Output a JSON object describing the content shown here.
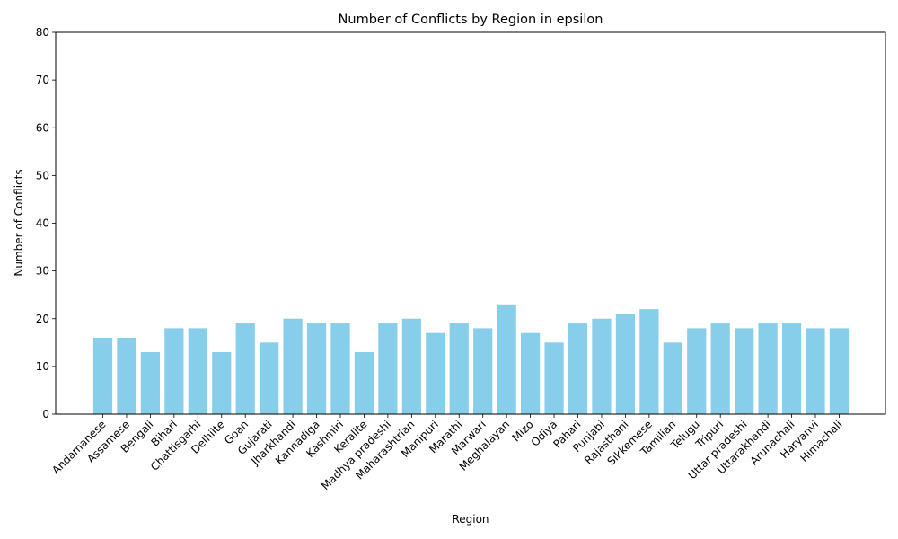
{
  "chart_data": {
    "type": "bar",
    "title": "Number of Conflicts by Region in epsilon",
    "xlabel": "Region",
    "ylabel": "Number of Conflicts",
    "ylim": [
      0,
      80
    ],
    "yticks": [
      0,
      10,
      20,
      30,
      40,
      50,
      60,
      70,
      80
    ],
    "grid": false,
    "bar_color": "#87ceeb",
    "categories": [
      "Andamanese",
      "Assamese",
      "Bengali",
      "Bihari",
      "Chattisgarhi",
      "Delhiite",
      "Goan",
      "Gujarati",
      "Jharkhandi",
      "Kannadiga",
      "Kashmiri",
      "Keralite",
      "Madhya pradeshi",
      "Maharashtrian",
      "Manipuri",
      "Marathi",
      "Marwari",
      "Meghalayan",
      "Mizo",
      "Odiya",
      "Pahari",
      "Punjabi",
      "Rajasthani",
      "Sikkemese",
      "Tamilian",
      "Telugu",
      "Tripuri",
      "Uttar pradeshi",
      "Uttarakhandi",
      "Arunachali",
      "Haryanvi",
      "Himachali"
    ],
    "values": [
      16,
      16,
      13,
      18,
      18,
      13,
      19,
      15,
      20,
      19,
      19,
      13,
      19,
      20,
      17,
      19,
      18,
      23,
      17,
      15,
      19,
      20,
      21,
      22,
      15,
      18,
      19,
      18,
      19,
      19,
      18,
      18
    ]
  }
}
